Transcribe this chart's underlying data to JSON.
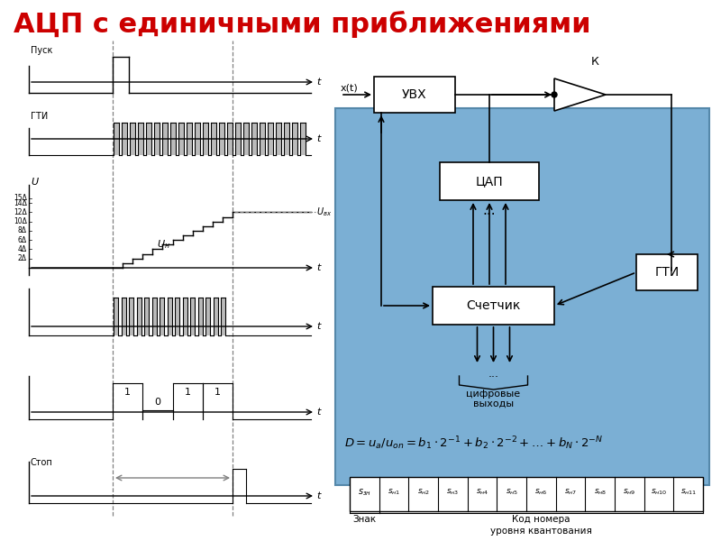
{
  "title": "АЦП с единичными приближениями",
  "title_color": "#cc0000",
  "title_fontsize": 22,
  "bg_color": "#ffffff",
  "diagram_bg": "#7bafd4",
  "formula_latex": "$D = u_a/u_{on} = b_1 \\cdot 2^{-1} + b_2 \\cdot 2^{-2} + \\ldots + b_N \\cdot 2^{-N}$",
  "code_labels": [
    "s_зн",
    "s_н1",
    "s_н2",
    "s_н3",
    "s_н4",
    "s_н5",
    "s_н6",
    "s_н7",
    "s_н8",
    "s_н9",
    "s_н10",
    "s_н11"
  ],
  "znak_label": "Знак",
  "kod_label": "Код номера\nуровня квантования"
}
